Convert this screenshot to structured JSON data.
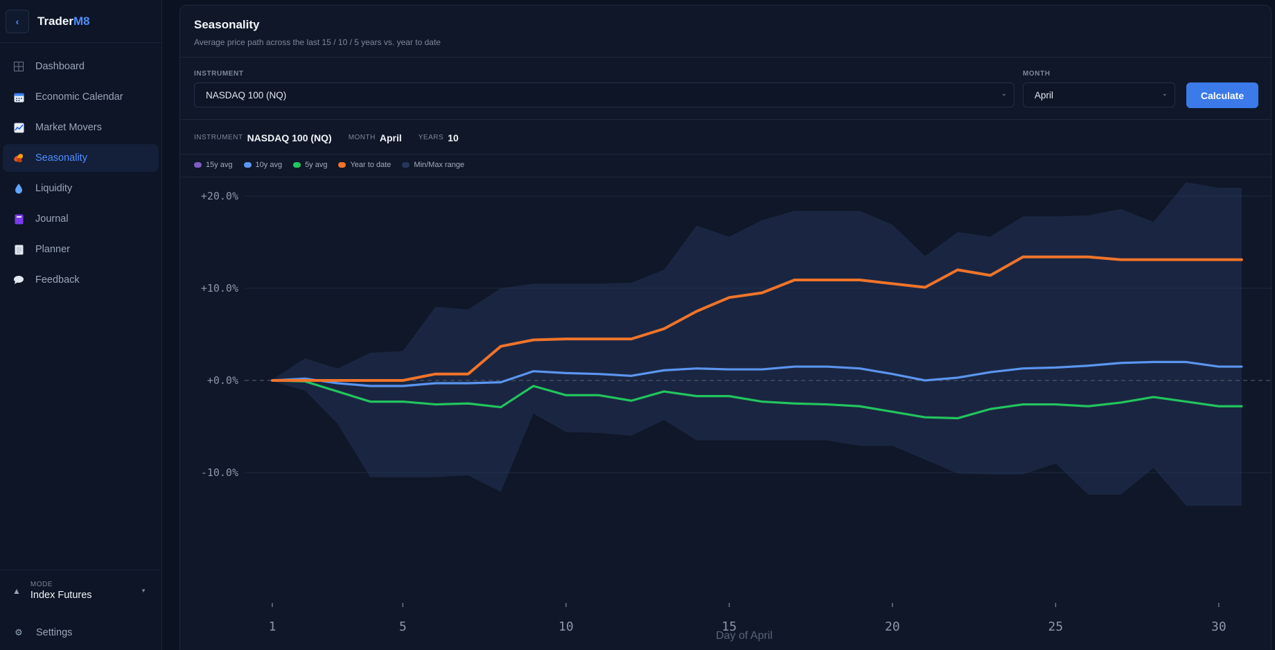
{
  "app": {
    "brand_prefix": "Trader",
    "brand_suffix": "M8",
    "back_icon": "chevron-left-icon"
  },
  "sidebar": {
    "items": [
      {
        "label": "Dashboard",
        "icon": "grid-icon",
        "active": false
      },
      {
        "label": "Economic Calendar",
        "icon": "calendar-icon",
        "active": false
      },
      {
        "label": "Market Movers",
        "icon": "trend-chart-icon",
        "active": false
      },
      {
        "label": "Seasonality",
        "icon": "leaves-icon",
        "active": true
      },
      {
        "label": "Liquidity",
        "icon": "droplet-icon",
        "active": false
      },
      {
        "label": "Journal",
        "icon": "notebook-icon",
        "active": false
      },
      {
        "label": "Planner",
        "icon": "notepad-icon",
        "active": false
      },
      {
        "label": "Feedback",
        "icon": "speech-bubble-icon",
        "active": false
      }
    ],
    "mode": {
      "label": "MODE",
      "value": "Index Futures"
    },
    "settings_label": "Settings"
  },
  "page": {
    "title": "Seasonality",
    "subtitle": "Average price path across the last 15 / 10 / 5 years vs. year to date"
  },
  "controls": {
    "instrument_label": "INSTRUMENT",
    "instrument_value": "NASDAQ 100 (NQ)",
    "month_label": "MONTH",
    "month_value": "April",
    "calculate_label": "Calculate"
  },
  "summary": {
    "instrument_label": "INSTRUMENT",
    "instrument_value": "NASDAQ 100 (NQ)",
    "month_label": "MONTH",
    "month_value": "April",
    "years_label": "YEARS",
    "years_value": "10"
  },
  "colors": {
    "avg15": "#7c5cc4",
    "avg10": "#5b95f0",
    "avg5": "#22c55e",
    "ytd": "#f0742a",
    "range": "#26365a",
    "accent": "#3b7ae8"
  },
  "chart_data": {
    "type": "line",
    "xlabel": "Day of April",
    "ylabel": "",
    "x": [
      1,
      2,
      3,
      4,
      5,
      6,
      7,
      8,
      9,
      10,
      11,
      12,
      13,
      14,
      15,
      16,
      17,
      18,
      19,
      20,
      21,
      22,
      23,
      24,
      25,
      26,
      27,
      28,
      29,
      30,
      30.7
    ],
    "xticks": [
      1,
      5,
      10,
      15,
      20,
      25,
      30
    ],
    "yticks": [
      20,
      10,
      0,
      -10
    ],
    "ytick_labels": [
      "+20.0%",
      "+10.0%",
      "+0.0%",
      "-10.0%"
    ],
    "ylim": [
      -18,
      25
    ],
    "legend": [
      "15y avg",
      "10y avg",
      "5y avg",
      "Year to date",
      "Min/Max range"
    ],
    "legend_position": "top-left",
    "series": [
      {
        "name": "10y avg",
        "color_key": "avg10",
        "values": [
          0,
          0.2,
          -0.3,
          -0.6,
          -0.6,
          -0.3,
          -0.3,
          -0.2,
          1.0,
          0.8,
          0.7,
          0.5,
          1.1,
          1.3,
          1.2,
          1.2,
          1.5,
          1.5,
          1.3,
          0.7,
          0,
          0.3,
          0.9,
          1.3,
          1.4,
          1.6,
          1.9,
          2.0,
          2.0,
          1.5,
          1.5
        ]
      },
      {
        "name": "5y avg",
        "color_key": "avg5",
        "values": [
          0,
          -0.1,
          -1.2,
          -2.3,
          -2.3,
          -2.6,
          -2.5,
          -2.9,
          -0.6,
          -1.6,
          -1.6,
          -2.2,
          -1.2,
          -1.7,
          -1.7,
          -2.3,
          -2.5,
          -2.6,
          -2.8,
          -3.4,
          -4.0,
          -4.1,
          -3.1,
          -2.6,
          -2.6,
          -2.8,
          -2.4,
          -1.8,
          -2.3,
          -2.8,
          -2.8
        ]
      },
      {
        "name": "Year to date",
        "color_key": "ytd",
        "values": [
          0,
          0,
          0,
          0,
          0,
          0.7,
          0.7,
          3.7,
          4.4,
          4.5,
          4.5,
          4.5,
          5.6,
          7.5,
          9.0,
          9.5,
          10.9,
          10.9,
          10.9,
          10.5,
          10.1,
          12.0,
          11.4,
          13.4,
          13.4,
          13.4,
          13.1,
          13.1,
          13.1,
          13.1,
          13.1
        ]
      },
      {
        "name": "Min/Max range",
        "color_key": "range",
        "type": "area",
        "upper": [
          0.1,
          2.4,
          1.3,
          3.0,
          3.2,
          8.0,
          7.7,
          10.0,
          10.5,
          10.5,
          10.5,
          10.6,
          12.0,
          16.8,
          15.6,
          17.4,
          18.4,
          18.4,
          18.4,
          16.9,
          13.5,
          16.1,
          15.6,
          17.8,
          17.8,
          17.9,
          18.6,
          17.2,
          21.5,
          20.9,
          20.9
        ],
        "lower": [
          -0.1,
          -1.1,
          -4.7,
          -10.5,
          -10.5,
          -10.5,
          -10.3,
          -12.1,
          -3.6,
          -5.6,
          -5.7,
          -6.0,
          -4.3,
          -6.5,
          -6.5,
          -6.5,
          -6.5,
          -6.5,
          -7.1,
          -7.1,
          -8.6,
          -10.1,
          -10.2,
          -10.2,
          -9.0,
          -12.4,
          -12.4,
          -9.5,
          -13.6,
          -13.6,
          -13.6
        ]
      }
    ]
  }
}
